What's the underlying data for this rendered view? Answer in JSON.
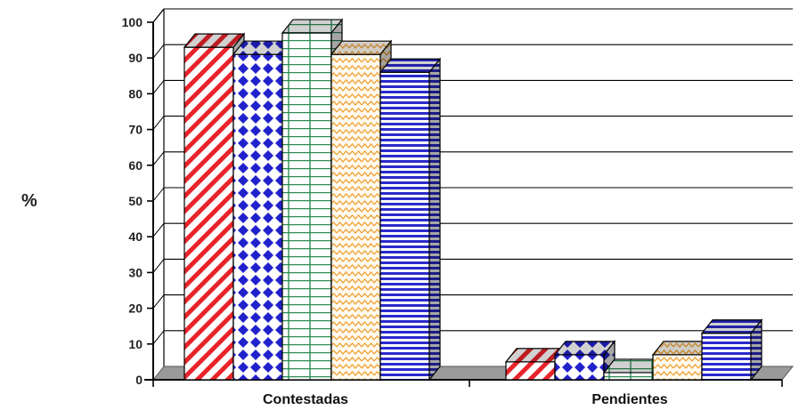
{
  "chart_data": {
    "type": "bar",
    "style": "3d-clustered",
    "ylabel": "%",
    "xlabel": "",
    "title": "",
    "ylim": [
      0,
      100
    ],
    "yticks": [
      0,
      10,
      20,
      30,
      40,
      50,
      60,
      70,
      80,
      90,
      100
    ],
    "grid": true,
    "legend": "none",
    "categories": [
      "Contestadas",
      "Pendientes"
    ],
    "series": [
      {
        "values": [
          93,
          5
        ],
        "color": "#e8232a",
        "pattern": "diagonal-stripes"
      },
      {
        "values": [
          91,
          7
        ],
        "color": "#2222cc",
        "pattern": "diamonds"
      },
      {
        "values": [
          97,
          2
        ],
        "color": "#2e8b57",
        "pattern": "grid"
      },
      {
        "values": [
          91,
          7
        ],
        "color": "#f0a030",
        "pattern": "waves"
      },
      {
        "values": [
          86,
          13
        ],
        "color": "#2a2acc",
        "pattern": "horizontal-stripes"
      }
    ]
  }
}
